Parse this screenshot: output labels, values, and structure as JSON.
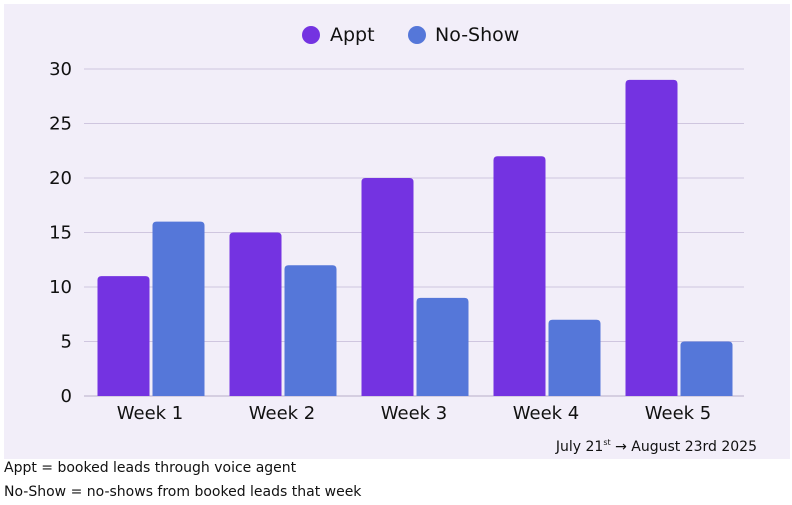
{
  "chart_data": {
    "type": "bar",
    "categories": [
      "Week 1",
      "Week 2",
      "Week 3",
      "Week 4",
      "Week 5"
    ],
    "series": [
      {
        "name": "Appt",
        "values": [
          11,
          15,
          20,
          22,
          29
        ],
        "color": "#7433e1"
      },
      {
        "name": "No-Show",
        "values": [
          16,
          12,
          9,
          7,
          5
        ],
        "color": "#5577d9"
      }
    ],
    "ylim": [
      0,
      30
    ],
    "yticks": [
      0,
      5,
      10,
      15,
      20,
      25,
      30
    ],
    "grid": true,
    "legend": "top-center",
    "title": "",
    "xlabel": "",
    "ylabel": ""
  },
  "date_range": {
    "start_month_day": "July 21",
    "start_suffix": "st",
    "arrow": "→",
    "end": "August 23rd 2025"
  },
  "notes": [
    "Appt = booked leads through voice agent",
    "No-Show = no-shows from booked leads that week"
  ],
  "colors": {
    "panel_background": "#f2eef9",
    "gridline": "#cfc6df"
  }
}
